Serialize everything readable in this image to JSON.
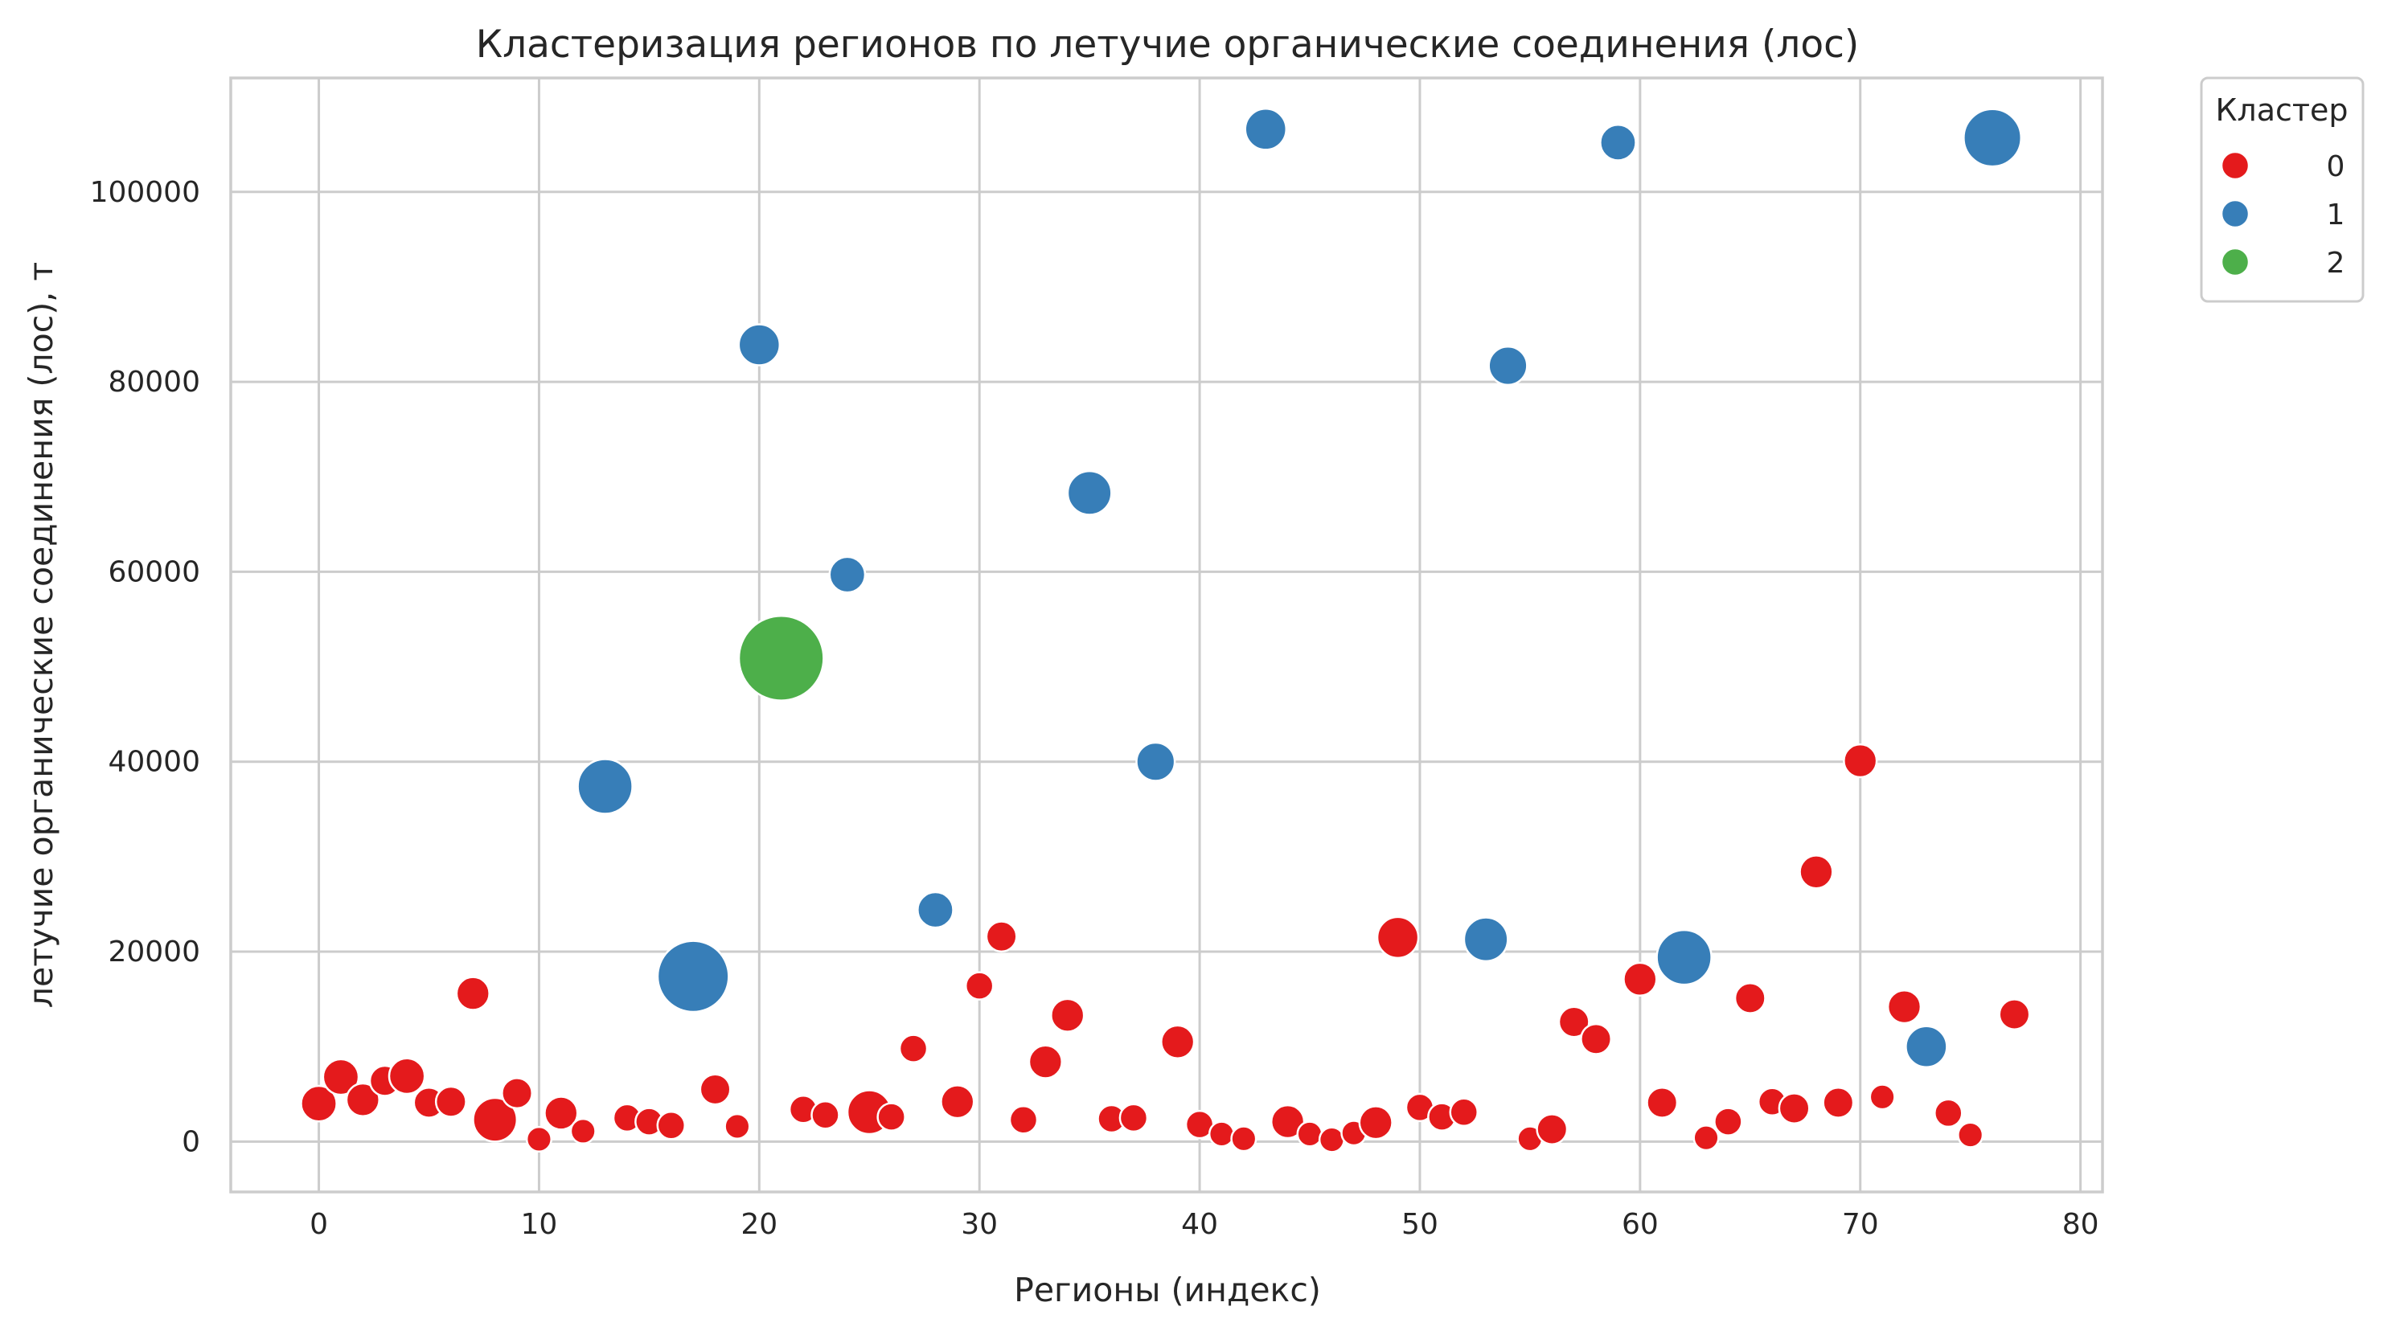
{
  "chart_data": {
    "type": "scatter",
    "title": "Кластеризация регионов по летучие органические соединения (лос)",
    "xlabel": "Регионы (индекс)",
    "ylabel": "летучие органические соединения (лос), т",
    "xlim": [
      -4,
      81
    ],
    "ylim": [
      -5300,
      112000
    ],
    "xticks": [
      0,
      10,
      20,
      30,
      40,
      50,
      60,
      70,
      80
    ],
    "yticks": [
      0,
      20000,
      40000,
      60000,
      80000,
      100000
    ],
    "grid": true,
    "legend": {
      "title": "Кластер",
      "placement": "outside-top-right",
      "entries": [
        {
          "label": "0",
          "color": "#e41a1c"
        },
        {
          "label": "1",
          "color": "#377eb8"
        },
        {
          "label": "2",
          "color": "#4daf4a"
        }
      ]
    },
    "series": [
      {
        "name": "0",
        "color": "#e41a1c",
        "x": [
          0,
          1,
          2,
          3,
          4,
          5,
          6,
          7,
          8,
          9,
          10,
          11,
          12,
          14,
          15,
          16,
          18,
          19,
          22,
          23,
          25,
          26,
          27,
          29,
          30,
          31,
          32,
          33,
          34,
          36,
          37,
          39,
          40,
          41,
          42,
          44,
          45,
          46,
          47,
          48,
          49,
          50,
          51,
          52,
          55,
          56,
          57,
          58,
          60,
          61,
          63,
          64,
          65,
          66,
          67,
          68,
          69,
          70,
          71,
          72,
          74,
          75,
          77
        ],
        "y": [
          4000,
          6800,
          4400,
          6400,
          6900,
          4100,
          4200,
          15600,
          2300,
          5100,
          250,
          3000,
          1100,
          2500,
          2100,
          1700,
          5500,
          1600,
          3400,
          2800,
          3100,
          2600,
          9800,
          4200,
          16400,
          21600,
          2300,
          8400,
          13300,
          2400,
          2500,
          10500,
          1800,
          800,
          300,
          2100,
          800,
          200,
          900,
          2000,
          21500,
          3600,
          2600,
          3100,
          300,
          1300,
          12600,
          10800,
          17100,
          4100,
          400,
          2100,
          15100,
          4200,
          3500,
          28400,
          4100,
          40100,
          4700,
          14200,
          3000,
          700,
          13400
        ],
        "size": [
          1.3,
          1.3,
          1.2,
          1.1,
          1.3,
          1.1,
          1.1,
          1.2,
          1.6,
          1.1,
          0.9,
          1.2,
          0.9,
          1.0,
          1.0,
          1.0,
          1.1,
          0.9,
          1.0,
          1.0,
          1.6,
          1.0,
          1.0,
          1.2,
          1.0,
          1.1,
          1.0,
          1.2,
          1.2,
          1.0,
          1.0,
          1.2,
          1.0,
          0.9,
          0.9,
          1.2,
          0.9,
          0.9,
          0.9,
          1.2,
          1.5,
          1.0,
          1.0,
          1.0,
          0.9,
          1.1,
          1.1,
          1.1,
          1.2,
          1.1,
          0.9,
          1.0,
          1.1,
          1.0,
          1.1,
          1.2,
          1.1,
          1.2,
          0.9,
          1.2,
          1.0,
          0.9,
          1.1
        ]
      },
      {
        "name": "1",
        "color": "#377eb8",
        "x": [
          13,
          17,
          20,
          24,
          28,
          35,
          38,
          43,
          53,
          54,
          59,
          62,
          73,
          76
        ],
        "y": [
          37400,
          17400,
          83900,
          59700,
          24400,
          68300,
          40000,
          106600,
          21300,
          81700,
          105200,
          19400,
          10000,
          105700
        ],
        "size": [
          2.0,
          2.6,
          1.5,
          1.3,
          1.3,
          1.6,
          1.4,
          1.5,
          1.6,
          1.4,
          1.3,
          2.0,
          1.5,
          2.1
        ]
      },
      {
        "name": "2",
        "color": "#4daf4a",
        "x": [
          21
        ],
        "y": [
          50900
        ],
        "size": [
          3.1
        ]
      }
    ]
  }
}
